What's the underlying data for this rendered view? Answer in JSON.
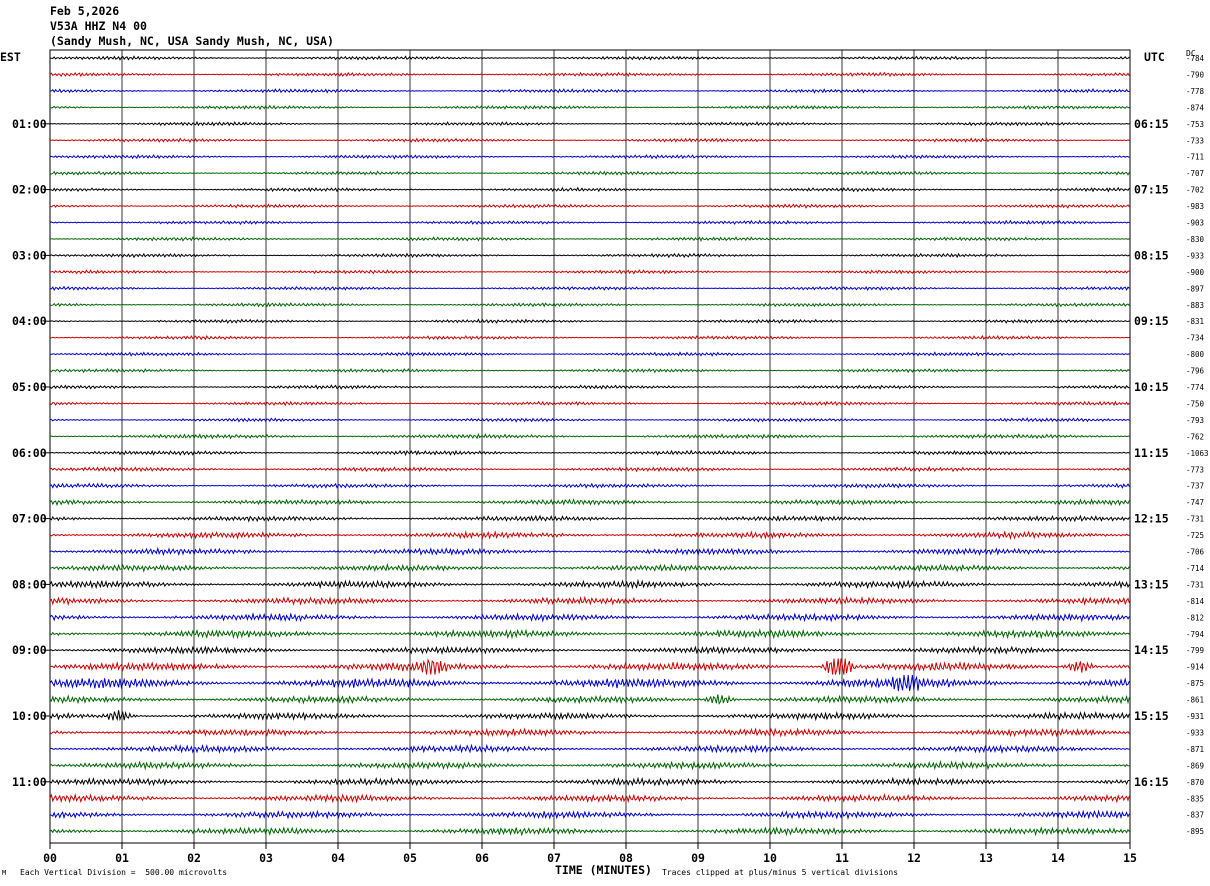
{
  "header": {
    "date": "Feb 5,2026",
    "station": "V53A HHZ N4 00",
    "location": "(Sandy Mush, NC, USA Sandy Mush, NC, USA)"
  },
  "left_tz": "EST",
  "right_tz": "UTC",
  "dc_label": "DC",
  "footer": {
    "scale": "Each Vertical Division =  500.00 microvolts",
    "xlabel": "TIME (MINUTES)",
    "clip_note": "Traces clipped at plus/minus 5 vertical divisions",
    "logo": "M"
  },
  "chart_data": {
    "type": "line",
    "title": "V53A HHZ N4 00",
    "xlabel": "TIME (MINUTES)",
    "xlim": [
      0,
      15
    ],
    "x_ticks": [
      "00",
      "01",
      "02",
      "03",
      "04",
      "05",
      "06",
      "07",
      "08",
      "09",
      "10",
      "11",
      "12",
      "13",
      "14",
      "15"
    ],
    "traces_per_hour": 4,
    "trace_colors": [
      "#000000",
      "#cc0000",
      "#0000cc",
      "#006600"
    ],
    "left_time_labels": [
      "01:00",
      "02:00",
      "03:00",
      "04:00",
      "05:00",
      "06:00",
      "07:00",
      "08:00",
      "09:00",
      "10:00",
      "11:00"
    ],
    "right_time_labels": [
      "06:15",
      "07:15",
      "08:15",
      "09:15",
      "10:15",
      "11:15",
      "12:15",
      "13:15",
      "14:15",
      "15:15",
      "16:15"
    ],
    "dc_offsets": [
      "-784",
      "-790",
      "-778",
      "-874",
      "-753",
      "-733",
      "-711",
      "-707",
      "-702",
      "-983",
      "-903",
      "-830",
      "-933",
      "-900",
      "-897",
      "-883",
      "-831",
      "-734",
      "-800",
      "-796",
      "-774",
      "-750",
      "-793",
      "-762",
      "-1063",
      "-773",
      "-737",
      "-747",
      "-731",
      "-725",
      "-706",
      "-714",
      "-731",
      "-814",
      "-812",
      "-794",
      "-799",
      "-914",
      "-875",
      "-861",
      "-931",
      "-933",
      "-871",
      "-869",
      "-870",
      "-835",
      "-837",
      "-895"
    ],
    "trace_activity": [
      1,
      1,
      1,
      1,
      1,
      1,
      1,
      1,
      1,
      1,
      1,
      1,
      1,
      1,
      1,
      1,
      1,
      1,
      1,
      1,
      1,
      1,
      1,
      1.2,
      1.2,
      1.2,
      1.2,
      1.5,
      1.5,
      1.8,
      1.8,
      1.8,
      2,
      2,
      2,
      2.2,
      2,
      2.5,
      3,
      2,
      2,
      2,
      2,
      2,
      2,
      2,
      2,
      2
    ],
    "events": [
      {
        "trace": 37,
        "minute": 5.3,
        "amplitude": 6
      },
      {
        "trace": 37,
        "minute": 14.3,
        "amplitude": 6
      },
      {
        "trace": 37,
        "minute": 10.95,
        "amplitude": 14
      },
      {
        "trace": 38,
        "minute": 11.9,
        "amplitude": 8
      },
      {
        "trace": 39,
        "minute": 9.3,
        "amplitude": 5
      },
      {
        "trace": 40,
        "minute": 0.95,
        "amplitude": 5
      }
    ]
  }
}
